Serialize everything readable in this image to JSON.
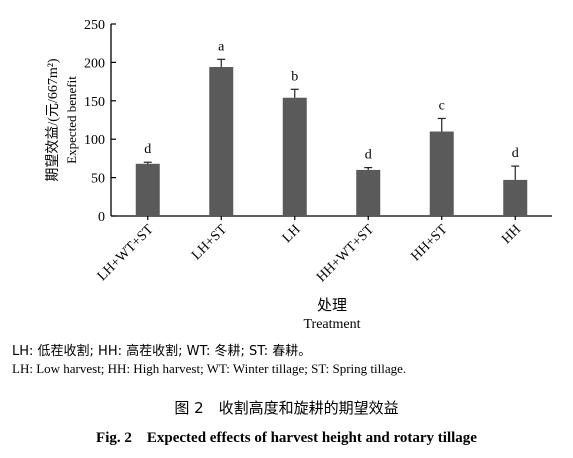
{
  "chart_data": {
    "type": "bar",
    "categories": [
      "LH+WT+ST",
      "LH+ST",
      "LH",
      "HH+WT+ST",
      "HH+ST",
      "HH"
    ],
    "values": [
      68,
      194,
      154,
      60,
      110,
      47
    ],
    "errors": [
      2,
      10,
      11,
      3,
      17,
      18
    ],
    "sig_letters": [
      "d",
      "a",
      "b",
      "d",
      "c",
      "d"
    ],
    "ylim": [
      0,
      250
    ],
    "yticks": [
      0,
      50,
      100,
      150,
      200,
      250
    ],
    "ylabel_zh": "期望效益/(元/667m²)",
    "ylabel_en": "Expected benefit",
    "xlabel_zh": "处理",
    "xlabel_en": "Treatment",
    "bar_color": "#5a5a5a",
    "grid": false
  },
  "abbreviations": {
    "zh": "LH: 低茬收割; HH: 高茬收割; WT: 冬耕; ST: 春耕。",
    "en": "LH: Low harvest; HH: High harvest; WT: Winter tillage; ST: Spring tillage."
  },
  "caption": {
    "zh": "图 2　收割高度和旋耕的期望效益",
    "en": "Fig. 2　Expected effects of harvest height and rotary tillage"
  }
}
